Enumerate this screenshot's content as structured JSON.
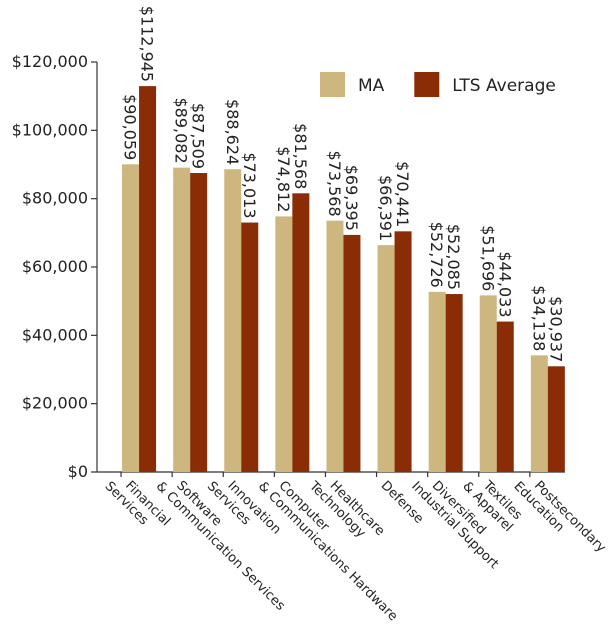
{
  "chart_data": {
    "type": "bar",
    "categories": [
      "Financial\nServices",
      "Software\n& Communication Services",
      "Innovation\nServices",
      "Computer\n& Communications Hardware",
      "Healthcare\nTechnology",
      "Defense",
      "Diversified\nIndustrial Support",
      "Textiles\n& Apparel",
      "Postsecondary\nEducation"
    ],
    "series": [
      {
        "name": "MA",
        "color": "#cdb77e",
        "values": [
          90059,
          89082,
          88624,
          74812,
          73568,
          66391,
          52726,
          51696,
          34138
        ],
        "value_labels": [
          "$90,059",
          "$89,082",
          "$88,624",
          "$74,812",
          "$73,568",
          "$66,391",
          "$52,726",
          "$51,696",
          "$34,138"
        ]
      },
      {
        "name": "LTS Average",
        "color": "#8a2c06",
        "values": [
          112945,
          87509,
          73013,
          81568,
          69395,
          70441,
          52085,
          44033,
          30937
        ],
        "value_labels": [
          "$112,945",
          "$87,509",
          "$73,013",
          "$81,568",
          "$69,395",
          "$70,441",
          "$52,085",
          "$44,033",
          "$30,937"
        ]
      }
    ],
    "ylim": [
      0,
      120000
    ],
    "yticks": [
      {
        "value": 0,
        "label": "$0"
      },
      {
        "value": 20000,
        "label": "$20,000"
      },
      {
        "value": 40000,
        "label": "$40,000"
      },
      {
        "value": 60000,
        "label": "$60,000"
      },
      {
        "value": 80000,
        "label": "$80,000"
      },
      {
        "value": 100000,
        "label": "$100,000"
      },
      {
        "value": 120000,
        "label": "$120,000"
      }
    ],
    "grid": false,
    "legend": "top-right"
  }
}
